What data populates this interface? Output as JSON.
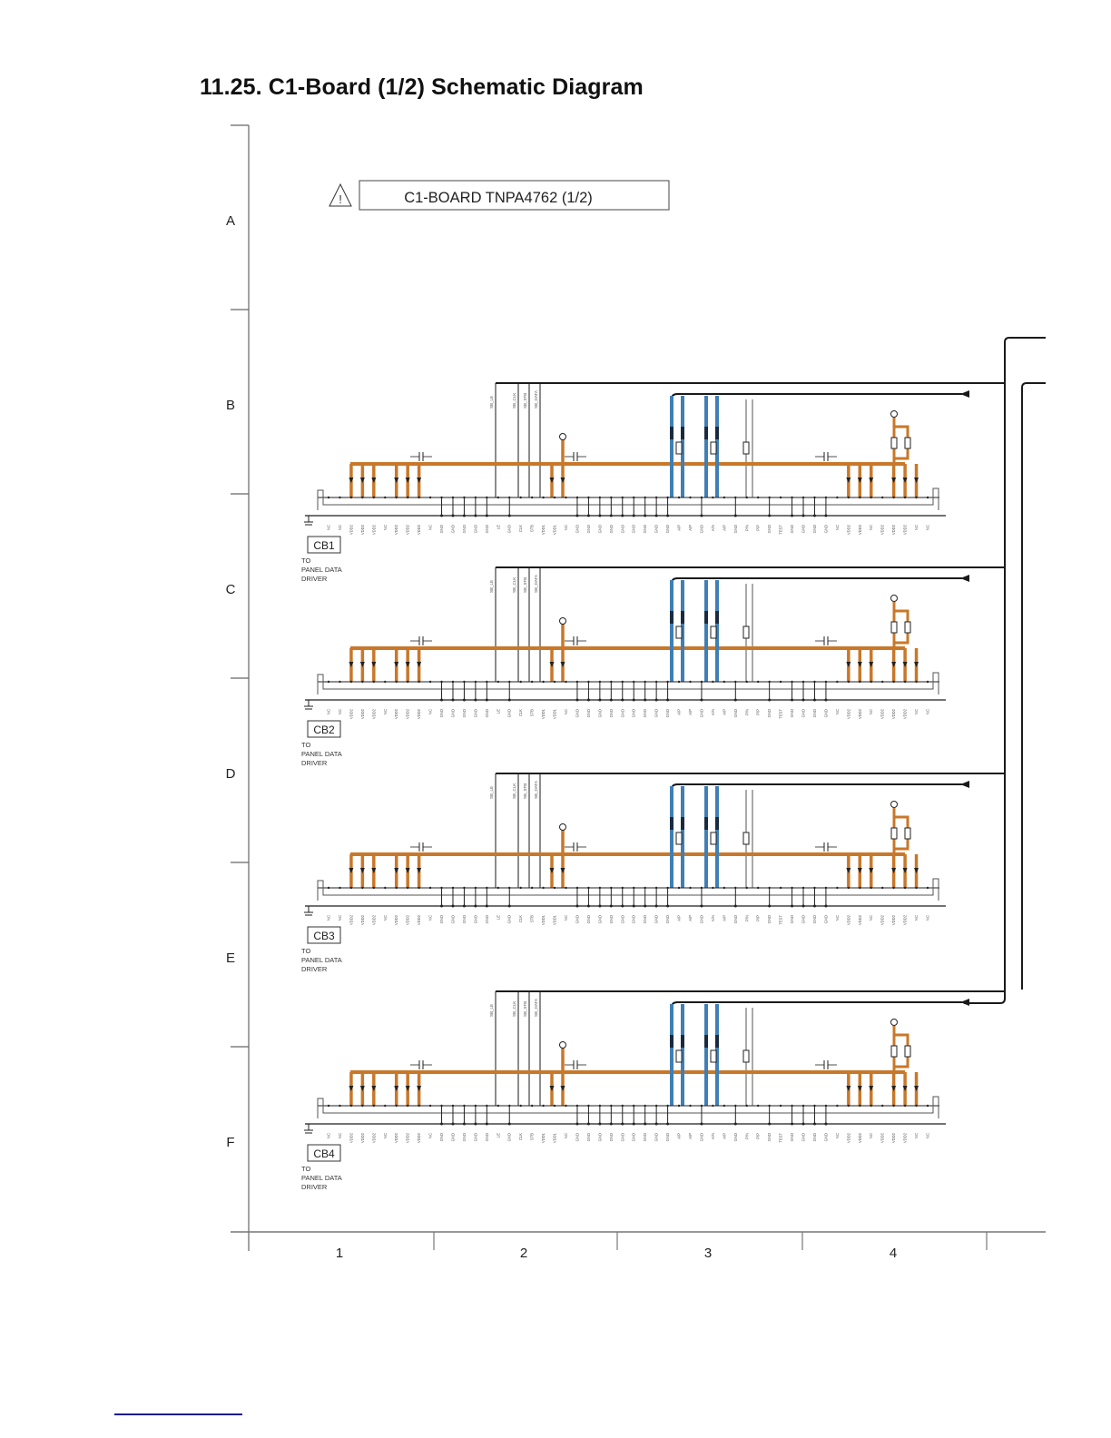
{
  "page": {
    "title": "11.25. C1-Board (1/2) Schematic Diagram"
  },
  "board_label": {
    "text": "C1-BOARD TNPA4762 (1/2)",
    "icon": "warning-triangle-icon"
  },
  "grid": {
    "rows": [
      "A",
      "B",
      "C",
      "D",
      "E",
      "F"
    ],
    "columns": [
      "1",
      "2",
      "3",
      "4"
    ]
  },
  "colors": {
    "power_bus": "#c8782a",
    "signal_bus": "#3f7fb5",
    "wire": "#1a1a1a",
    "footer_link": "#1a1a8c"
  },
  "connectors": [
    {
      "id": "CB1",
      "destination_lines": [
        "TO",
        "PANEL DATA",
        "DRIVER"
      ]
    },
    {
      "id": "CB2",
      "destination_lines": [
        "TO",
        "PANEL DATA",
        "DRIVER"
      ]
    },
    {
      "id": "CB3",
      "destination_lines": [
        "TO",
        "PANEL DATA",
        "DRIVER"
      ]
    },
    {
      "id": "CB4",
      "destination_lines": [
        "TO",
        "PANEL DATA",
        "DRIVER"
      ]
    }
  ],
  "pin_labels_sample": [
    "NC",
    "NC",
    "VDD2",
    "VDD2",
    "VDD2",
    "NC",
    "VDD2",
    "VDD2",
    "VDD2",
    "NC",
    "GND",
    "GND",
    "GND",
    "GND",
    "GND",
    "LE",
    "GND",
    "CLK",
    "STB",
    "VDD1",
    "VDD1",
    "NC",
    "GND",
    "GND",
    "GND",
    "GND",
    "GND",
    "GND",
    "GND",
    "GND",
    "GND",
    "A/P",
    "A/P",
    "GND",
    "A/N",
    "A/P",
    "GND",
    "P/N",
    "P/P",
    "GND",
    "TEST",
    "GND",
    "GND",
    "GND",
    "GND",
    "NC",
    "VDD2",
    "VDD2",
    "NC",
    "VDD2",
    "VDD2",
    "VDD2",
    "NC",
    "NC"
  ],
  "signal_labels_sample": [
    "SB_LE",
    "SB_CLK",
    "SB_STB",
    "SB_DATA",
    "5V_PB_SUS",
    "VSA"
  ]
}
